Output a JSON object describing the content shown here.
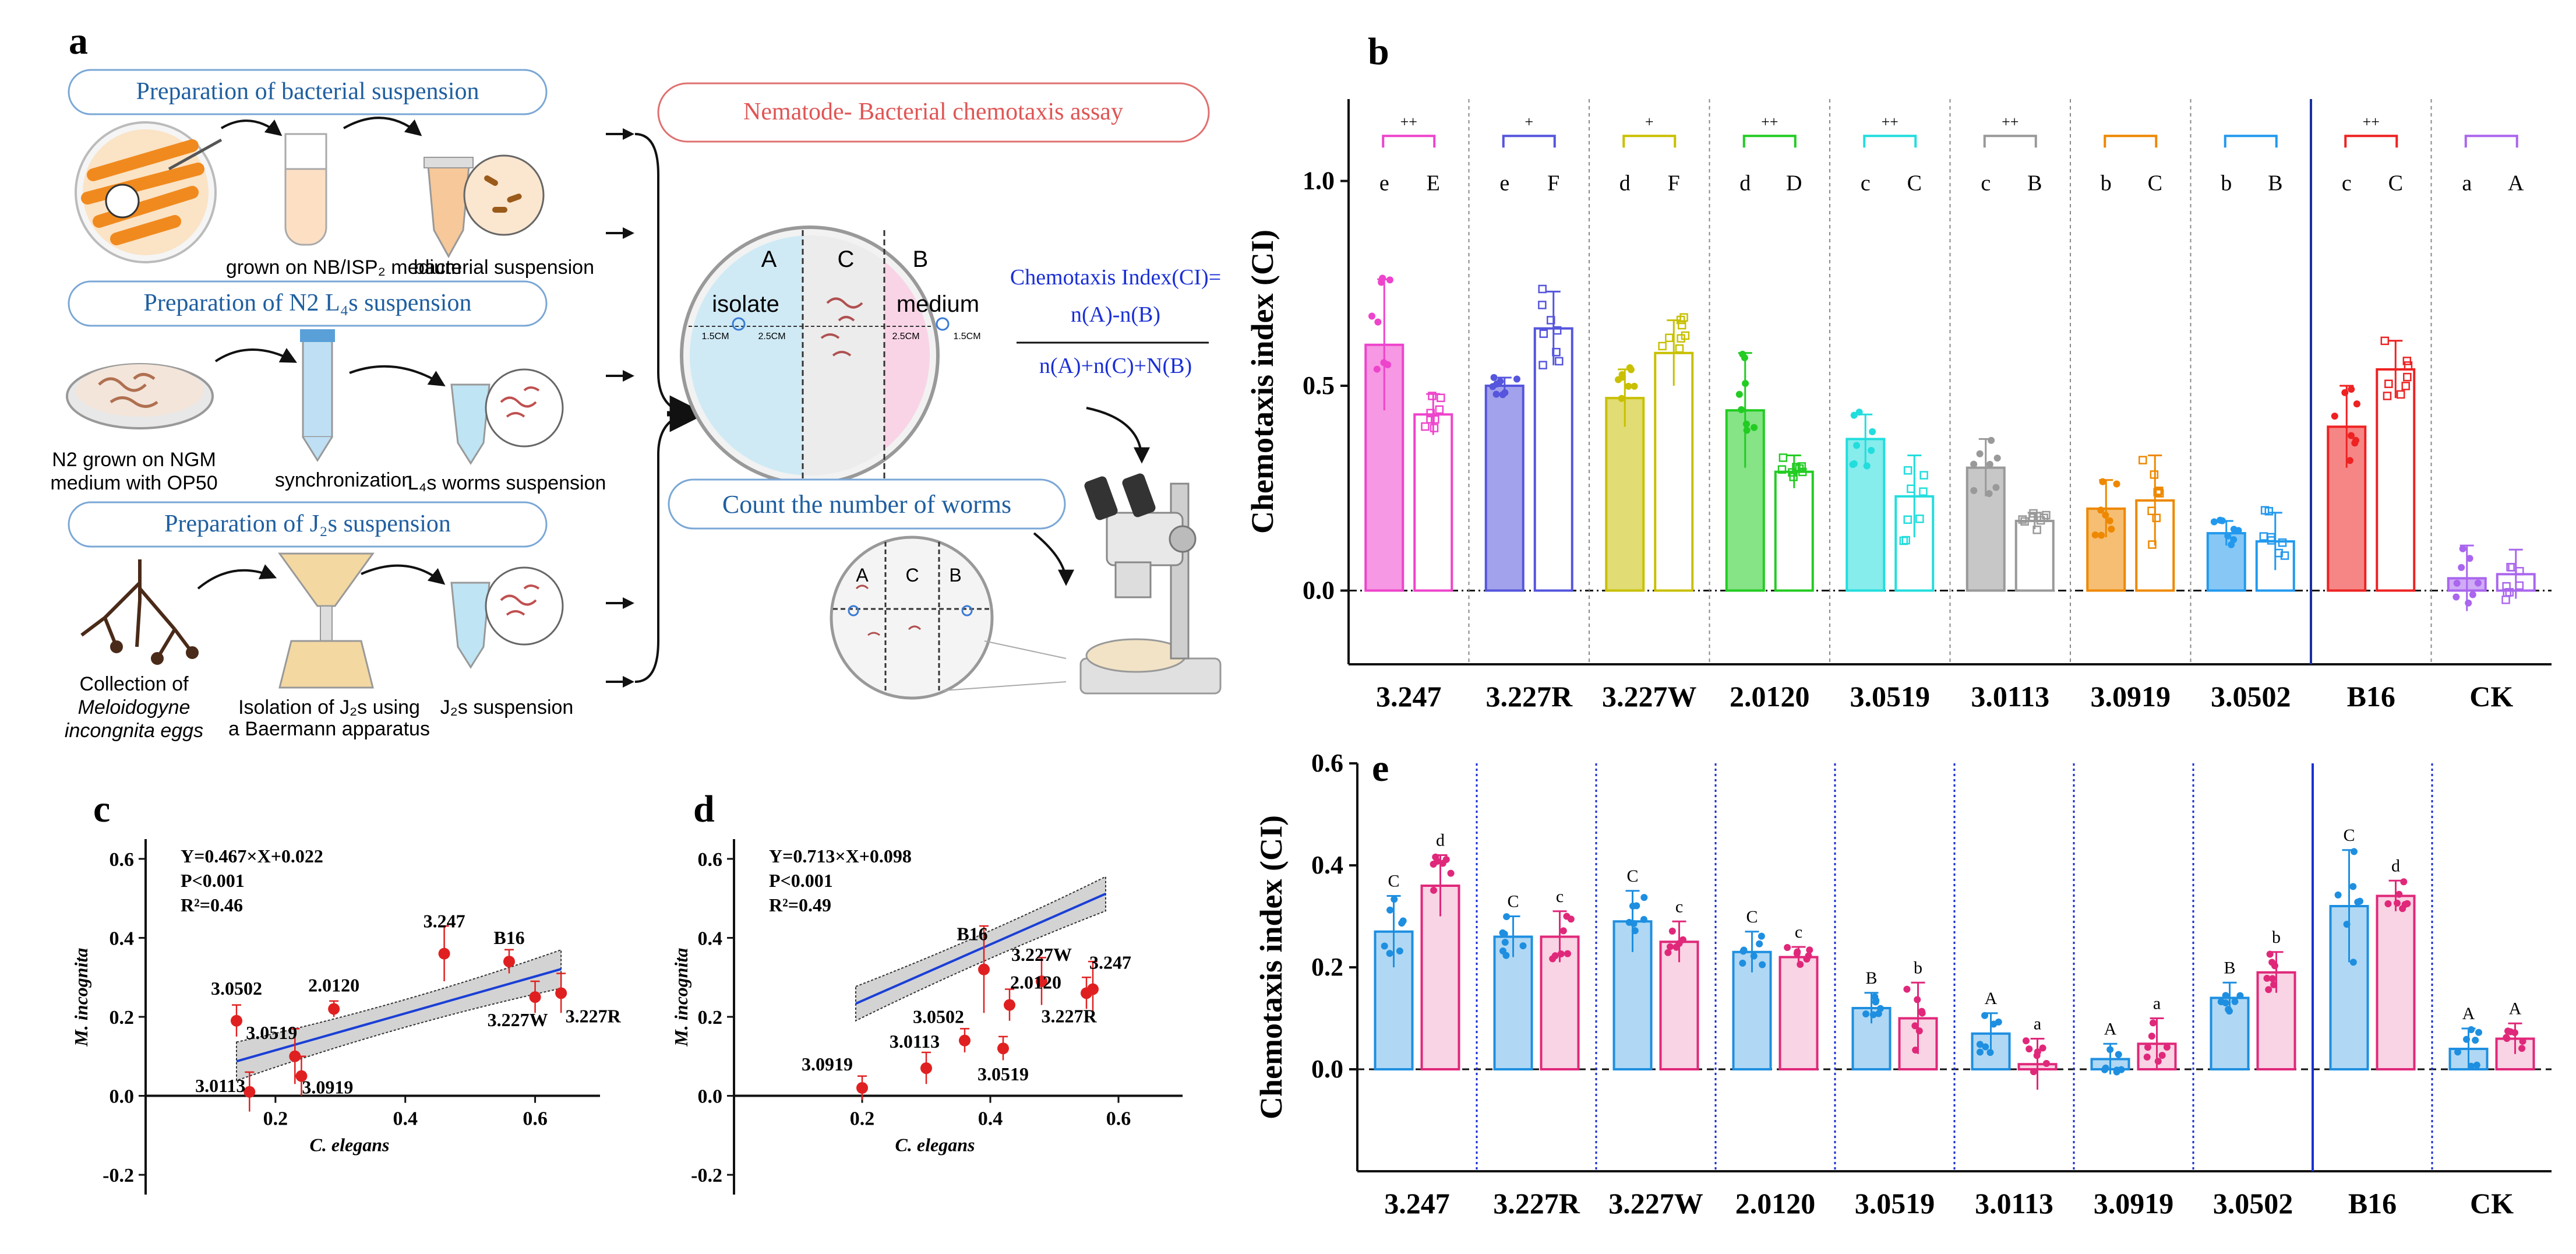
{
  "panel_labels": {
    "a": "a",
    "b": "b",
    "c": "c",
    "d": "d",
    "e": "e"
  },
  "panel_a": {
    "prep_bacteria": "Preparation of bacterial suspension",
    "grown_on": "grown on NB/ISP₂ medium",
    "bacterial_suspension": "bacterial suspension",
    "prep_n2": "Preparation of N2 L₄s  suspension",
    "n2_grown_line1": "N2 grown on NGM",
    "n2_grown_line2": "medium with OP50",
    "synchronization": "synchronization",
    "l4_worms": "L₄s worms suspension",
    "prep_j2": "Preparation of J₂s  suspension",
    "collection_line1": "Collection of",
    "collection_line2": "Meloidogyne",
    "collection_line3": "incongnita eggs",
    "isolation_line1": "Isolation  of J₂s using",
    "isolation_line2": "a Baermann apparatus",
    "j2_suspension": "J₂s  suspension",
    "assay_title": "Nematode- Bacterial chemotaxis assay",
    "zone_a": "A",
    "zone_c": "C",
    "zone_b": "B",
    "isolate": "isolate",
    "medium": "medium",
    "d15_left": "1.5CM",
    "d25_left": "2.5CM",
    "d25_right": "2.5CM",
    "d15_right": "1.5CM",
    "ci_title": "Chemotaxis Index(CI)=",
    "ci_numerator": "n(A)-n(B)",
    "ci_denominator": "n(A)+n(C)+N(B)",
    "count_title": "Count the number of worms",
    "small_a": "A",
    "small_c": "C",
    "small_b": "B"
  },
  "colors": {
    "box_border": "#7aa7d6",
    "box_text": "#1f5fa0",
    "assay_border": "#e07070",
    "assay_text": "#e05555",
    "ci_text": "#1a2fd6",
    "zone_a_fill": "#cfeaf5",
    "zone_c_fill": "#ececec",
    "zone_b_fill": "#f9d4e6",
    "bar_e_c_elegans": "#1e8fe0",
    "bar_e_m_incognita": "#e0287a",
    "regression_line": "#1a3fd6",
    "ci_band": "#c8c8c8",
    "point": "#e02020"
  },
  "chart_data": [
    {
      "id": "b",
      "type": "bar",
      "title": "",
      "ylabel": "Chemotaxis index (CI)",
      "ylim": [
        -0.18,
        1.2
      ],
      "yticks": [
        "0.0",
        "0.5",
        "1.0"
      ],
      "ytick_values": [
        0,
        0.5,
        1.0
      ],
      "groups": [
        {
          "label": "3.247",
          "color": "#ee44cc",
          "sig": "++",
          "letters": [
            "e",
            "E"
          ],
          "values": [
            0.6,
            0.43
          ],
          "errors": [
            0.16,
            0.05
          ]
        },
        {
          "label": "3.227R",
          "color": "#5555dd",
          "sig": "+",
          "letters": [
            "e",
            "F"
          ],
          "values": [
            0.5,
            0.64
          ],
          "errors": [
            0.02,
            0.09
          ]
        },
        {
          "label": "3.227W",
          "color": "#c8c000",
          "sig": "+",
          "letters": [
            "d",
            "F"
          ],
          "values": [
            0.47,
            0.58
          ],
          "errors": [
            0.07,
            0.08
          ]
        },
        {
          "label": "2.0120",
          "color": "#22cc22",
          "sig": "++",
          "letters": [
            "d",
            "D"
          ],
          "values": [
            0.44,
            0.29
          ],
          "errors": [
            0.14,
            0.04
          ]
        },
        {
          "label": "3.0519",
          "color": "#22dddd",
          "sig": "++",
          "letters": [
            "c",
            "C"
          ],
          "values": [
            0.37,
            0.23
          ],
          "errors": [
            0.06,
            0.1
          ]
        },
        {
          "label": "3.0113",
          "color": "#999999",
          "sig": "++",
          "letters": [
            "c",
            "B"
          ],
          "values": [
            0.3,
            0.17
          ],
          "errors": [
            0.07,
            0.02
          ]
        },
        {
          "label": "3.0919",
          "color": "#ee8800",
          "sig": "",
          "letters": [
            "b",
            "C"
          ],
          "values": [
            0.2,
            0.22
          ],
          "errors": [
            0.07,
            0.11
          ]
        },
        {
          "label": "3.0502",
          "color": "#2299ee",
          "sig": "",
          "letters": [
            "b",
            "B"
          ],
          "values": [
            0.14,
            0.12
          ],
          "errors": [
            0.03,
            0.07
          ]
        },
        {
          "label": "B16",
          "color": "#ee2222",
          "sig": "++",
          "letters": [
            "c",
            "C"
          ],
          "values": [
            0.4,
            0.54
          ],
          "errors": [
            0.1,
            0.07
          ]
        },
        {
          "label": "CK",
          "color": "#aa66ee",
          "sig": "",
          "letters": [
            "a",
            "A"
          ],
          "values": [
            0.03,
            0.04
          ],
          "errors": [
            0.08,
            0.06
          ]
        }
      ]
    },
    {
      "id": "e",
      "type": "bar",
      "title": "",
      "ylabel": "Chemotaxis index (CI)",
      "ylim": [
        -0.2,
        0.6
      ],
      "yticks": [
        "0.0",
        "0.2",
        "0.4",
        "0.6"
      ],
      "ytick_values": [
        0,
        0.2,
        0.4,
        0.6
      ],
      "series": [
        {
          "name": "C. elegans",
          "color": "#1e8fe0"
        },
        {
          "name": "M. incognita",
          "color": "#e0287a"
        }
      ],
      "groups": [
        {
          "label": "3.247",
          "letters": [
            "C",
            "d"
          ],
          "values": [
            0.27,
            0.36
          ],
          "errors": [
            0.07,
            0.06
          ]
        },
        {
          "label": "3.227R",
          "letters": [
            "C",
            "c"
          ],
          "values": [
            0.26,
            0.26
          ],
          "errors": [
            0.04,
            0.05
          ]
        },
        {
          "label": "3.227W",
          "letters": [
            "C",
            "c"
          ],
          "values": [
            0.29,
            0.25
          ],
          "errors": [
            0.06,
            0.04
          ]
        },
        {
          "label": "2.0120",
          "letters": [
            "C",
            "c"
          ],
          "values": [
            0.23,
            0.22
          ],
          "errors": [
            0.04,
            0.02
          ]
        },
        {
          "label": "3.0519",
          "letters": [
            "B",
            "b"
          ],
          "values": [
            0.12,
            0.1
          ],
          "errors": [
            0.03,
            0.07
          ]
        },
        {
          "label": "3.0113",
          "letters": [
            "A",
            "a"
          ],
          "values": [
            0.07,
            0.01
          ],
          "errors": [
            0.04,
            0.05
          ]
        },
        {
          "label": "3.0919",
          "letters": [
            "A",
            "a"
          ],
          "values": [
            0.02,
            0.05
          ],
          "errors": [
            0.03,
            0.05
          ]
        },
        {
          "label": "3.0502",
          "letters": [
            "B",
            "b"
          ],
          "values": [
            0.14,
            0.19
          ],
          "errors": [
            0.03,
            0.04
          ]
        },
        {
          "label": "B16",
          "letters": [
            "C",
            "d"
          ],
          "values": [
            0.32,
            0.34
          ],
          "errors": [
            0.11,
            0.03
          ]
        },
        {
          "label": "CK",
          "letters": [
            "A",
            "A"
          ],
          "values": [
            0.04,
            0.06
          ],
          "errors": [
            0.04,
            0.03
          ]
        }
      ]
    },
    {
      "id": "c",
      "type": "scatter",
      "xlabel": "C. elegans",
      "ylabel": "M. incognita",
      "xlim": [
        0,
        0.7
      ],
      "ylim": [
        -0.25,
        0.65
      ],
      "xticks": [
        "0.2",
        "0.4",
        "0.6"
      ],
      "xtick_values": [
        0.2,
        0.4,
        0.6
      ],
      "yticks": [
        "-0.2",
        "0.0",
        "0.2",
        "0.4",
        "0.6"
      ],
      "ytick_values": [
        -0.2,
        0,
        0.2,
        0.4,
        0.6
      ],
      "equation": "Y=0.467×X+0.022",
      "pvalue": "P<0.001",
      "r2": "R²=0.46",
      "fit": {
        "slope": 0.467,
        "intercept": 0.022,
        "x_range": [
          0.14,
          0.64
        ]
      },
      "points": [
        {
          "label": "3.247",
          "x": 0.46,
          "y": 0.36,
          "err": 0.07
        },
        {
          "label": "B16",
          "x": 0.56,
          "y": 0.34,
          "err": 0.03
        },
        {
          "label": "3.227W",
          "x": 0.6,
          "y": 0.25,
          "err": 0.04
        },
        {
          "label": "3.227R",
          "x": 0.64,
          "y": 0.26,
          "err": 0.05
        },
        {
          "label": "2.0120",
          "x": 0.29,
          "y": 0.22,
          "err": 0.02
        },
        {
          "label": "3.0502",
          "x": 0.14,
          "y": 0.19,
          "err": 0.04
        },
        {
          "label": "3.0519",
          "x": 0.23,
          "y": 0.1,
          "err": 0.07
        },
        {
          "label": "3.0919",
          "x": 0.24,
          "y": 0.05,
          "err": 0.05
        },
        {
          "label": "3.0113",
          "x": 0.16,
          "y": 0.01,
          "err": 0.05
        }
      ]
    },
    {
      "id": "d",
      "type": "scatter",
      "xlabel": "C. elegans",
      "ylabel": "M. incognita",
      "xlim": [
        0,
        0.7
      ],
      "ylim": [
        -0.25,
        0.65
      ],
      "xticks": [
        "0.2",
        "0.4",
        "0.6"
      ],
      "xtick_values": [
        0.2,
        0.4,
        0.6
      ],
      "yticks": [
        "-0.2",
        "0.0",
        "0.2",
        "0.4",
        "0.6"
      ],
      "ytick_values": [
        -0.2,
        0,
        0.2,
        0.4,
        0.6
      ],
      "equation": "Y=0.713×X+0.098",
      "pvalue": "P<0.001",
      "r2": "R²=0.49",
      "fit": {
        "slope": 0.713,
        "intercept": 0.098,
        "x_range": [
          0.19,
          0.58
        ]
      },
      "points": [
        {
          "label": "3.247",
          "x": 0.56,
          "y": 0.27,
          "err": 0.07
        },
        {
          "label": "B16",
          "x": 0.39,
          "y": 0.32,
          "err": 0.11
        },
        {
          "label": "3.227W",
          "x": 0.48,
          "y": 0.29,
          "err": 0.06
        },
        {
          "label": "2.0120",
          "x": 0.43,
          "y": 0.23,
          "err": 0.04
        },
        {
          "label": "3.0502",
          "x": 0.36,
          "y": 0.14,
          "err": 0.03
        },
        {
          "label": "3.0113",
          "x": 0.3,
          "y": 0.07,
          "err": 0.04
        },
        {
          "label": "3.227R",
          "x": 0.55,
          "y": 0.26,
          "err": 0.04
        },
        {
          "label": "3.0519",
          "x": 0.42,
          "y": 0.12,
          "err": 0.03
        },
        {
          "label": "3.0919",
          "x": 0.2,
          "y": 0.02,
          "err": 0.03
        }
      ]
    }
  ]
}
